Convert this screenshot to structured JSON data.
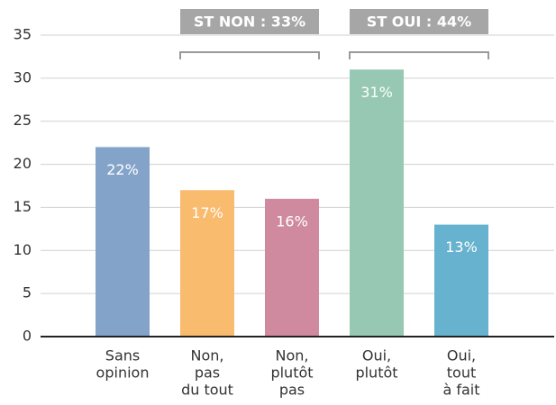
{
  "chart_data": {
    "type": "bar",
    "categories": [
      [
        "Sans",
        "opinion"
      ],
      [
        "Non,",
        "pas",
        "du tout"
      ],
      [
        "Non,",
        "plutôt",
        "pas"
      ],
      [
        "Oui,",
        "plutôt"
      ],
      [
        "Oui,",
        "tout",
        "à fait"
      ]
    ],
    "values": [
      22,
      17,
      16,
      31,
      13
    ],
    "value_labels": [
      "22%",
      "17%",
      "16%",
      "31%",
      "13%"
    ],
    "colors": [
      "#84a3c9",
      "#f9bb6e",
      "#cf8aa0",
      "#96c8b3",
      "#67b2ce"
    ],
    "annotations": [
      "ST NON : 33%",
      "ST OUI : 44%"
    ],
    "ylim": [
      0,
      35
    ],
    "yticks": [
      0,
      5,
      10,
      15,
      20,
      25,
      30,
      35
    ],
    "grid": true
  }
}
